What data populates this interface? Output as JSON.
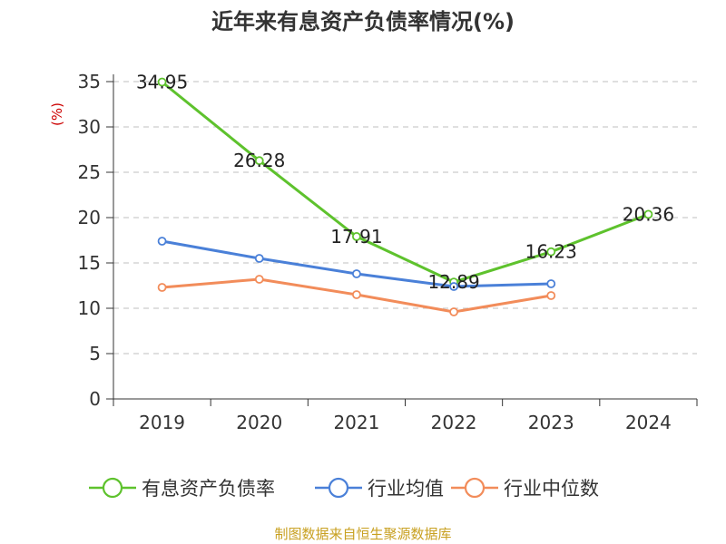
{
  "title": "近年来有息资产负债率情况(%)",
  "source": "制图数据来自恒生聚源数据库",
  "colors": {
    "title": "#333333",
    "axis": "#333333",
    "grid": "#cccccc",
    "unit": "#cc0000",
    "source": "#c8a020"
  },
  "chart_data": {
    "type": "line",
    "title": "近年来有息资产负债率情况(%)",
    "xlabel": "",
    "ylabel": "(%)",
    "categories": [
      "2019",
      "2020",
      "2021",
      "2022",
      "2023",
      "2024"
    ],
    "ylim": [
      0,
      35
    ],
    "yticks": [
      0,
      5,
      10,
      15,
      20,
      25,
      30,
      35
    ],
    "grid": "horizontal dashed",
    "legend": "bottom",
    "series": [
      {
        "name": "有息资产负债率",
        "color": "#5ec22d",
        "values": [
          34.95,
          26.28,
          17.91,
          12.89,
          16.23,
          20.36
        ],
        "labels": [
          "34.95",
          "26.28",
          "17.91",
          "12.89",
          "16.23",
          "20.36"
        ]
      },
      {
        "name": "行业均值",
        "color": "#4a80d8",
        "values": [
          17.4,
          15.5,
          13.8,
          12.4,
          12.7,
          null
        ]
      },
      {
        "name": "行业中位数",
        "color": "#f28c5a",
        "values": [
          12.3,
          13.2,
          11.5,
          9.6,
          11.4,
          null
        ]
      }
    ]
  }
}
